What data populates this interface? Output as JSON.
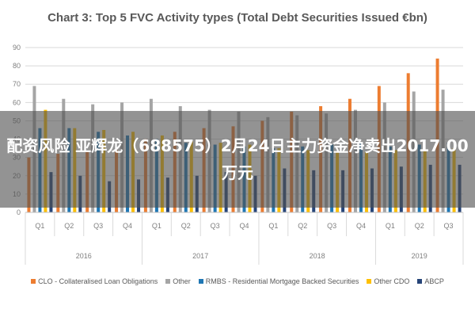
{
  "chart_data": {
    "type": "bar",
    "title": "Chart 3: Top 5 FVC Activity types (Total Debt Securities Issued €bn)",
    "xlabel": "",
    "ylabel": "",
    "ylim": [
      0,
      90
    ],
    "yticks": [
      0,
      10,
      20,
      30,
      40,
      50,
      60,
      70,
      80,
      90
    ],
    "grid": true,
    "legend_position": "bottom",
    "categories": [
      "Q1",
      "Q2",
      "Q3",
      "Q4",
      "Q1",
      "Q2",
      "Q3",
      "Q4",
      "Q1",
      "Q2",
      "Q3",
      "Q4",
      "Q1",
      "Q2",
      "Q3"
    ],
    "years": [
      {
        "label": "2016",
        "count": 4
      },
      {
        "label": "2017",
        "count": 4
      },
      {
        "label": "2018",
        "count": 4
      },
      {
        "label": "2019",
        "count": 3
      }
    ],
    "series": [
      {
        "name": "CLO - Collateralised Loan Obligations",
        "color": "#ed7d31",
        "values": [
          30,
          32,
          33,
          34,
          40,
          44,
          46,
          47,
          50,
          55,
          58,
          62,
          69,
          76,
          84
        ]
      },
      {
        "name": "Other",
        "color": "#a5a5a5",
        "values": [
          69,
          62,
          59,
          60,
          62,
          58,
          56,
          55,
          52,
          53,
          54,
          56,
          60,
          66,
          67
        ]
      },
      {
        "name": "RMBS - Residential Mortgage Backed Securities",
        "color": "#1f77b4",
        "values": [
          46,
          46,
          44,
          42,
          40,
          38,
          37,
          36,
          35,
          36,
          37,
          38,
          36,
          37,
          38
        ]
      },
      {
        "name": "Other CDO",
        "color": "#ffc000",
        "values": [
          56,
          46,
          45,
          44,
          42,
          39,
          38,
          37,
          35,
          34,
          33,
          33,
          34,
          34,
          35
        ]
      },
      {
        "name": "ABCP",
        "color": "#264478",
        "values": [
          22,
          20,
          17,
          18,
          19,
          20,
          22,
          20,
          24,
          23,
          23,
          24,
          25,
          26,
          26
        ]
      }
    ]
  },
  "overlay": {
    "headline": "配资风险 亚辉龙（688575）2月24日主力资金净卖出2017.00万元"
  }
}
